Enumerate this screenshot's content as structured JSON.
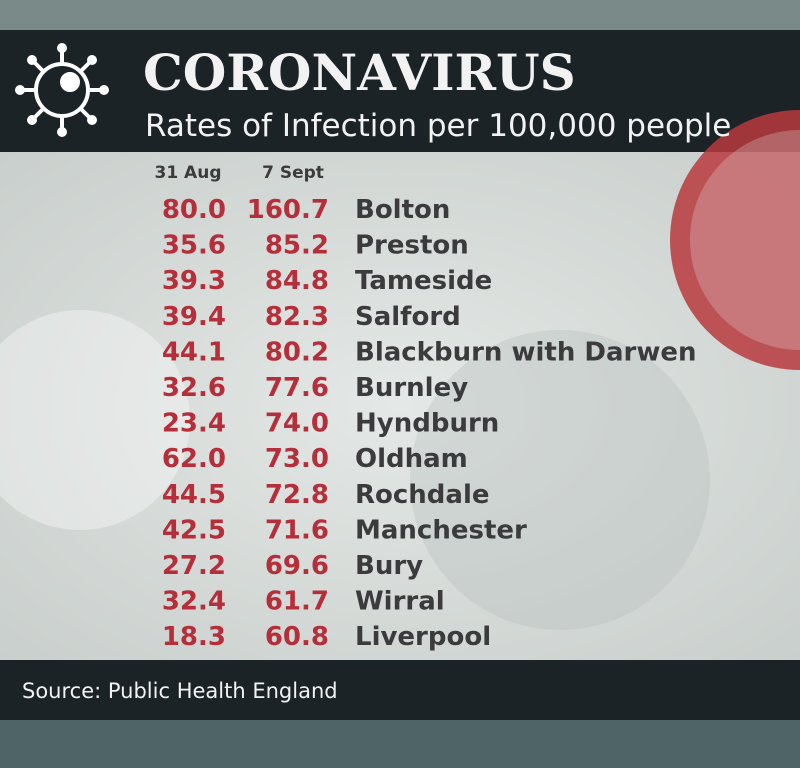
{
  "header": {
    "title": "CORONAVIRUS",
    "subtitle": "Rates of Infection per 100,000 people"
  },
  "table": {
    "columns": [
      "31 Aug",
      "7 Sept"
    ],
    "rows": [
      [
        "80.0",
        "160.7",
        "Bolton"
      ],
      [
        "35.6",
        "85.2",
        "Preston"
      ],
      [
        "39.3",
        "84.8",
        "Tameside"
      ],
      [
        "39.4",
        "82.3",
        "Salford"
      ],
      [
        "44.1",
        "80.2",
        "Blackburn with Darwen"
      ],
      [
        "32.6",
        "77.6",
        "Burnley"
      ],
      [
        "23.4",
        "74.0",
        "Hyndburn"
      ],
      [
        "62.0",
        "73.0",
        "Oldham"
      ],
      [
        "44.5",
        "72.8",
        "Rochdale"
      ],
      [
        "42.5",
        "71.6",
        "Manchester"
      ],
      [
        "27.2",
        "69.6",
        "Bury"
      ],
      [
        "32.4",
        "61.7",
        "Wirral"
      ],
      [
        "18.3",
        "60.8",
        "Liverpool"
      ]
    ]
  },
  "footer": {
    "source": "Source: Public Health England"
  }
}
